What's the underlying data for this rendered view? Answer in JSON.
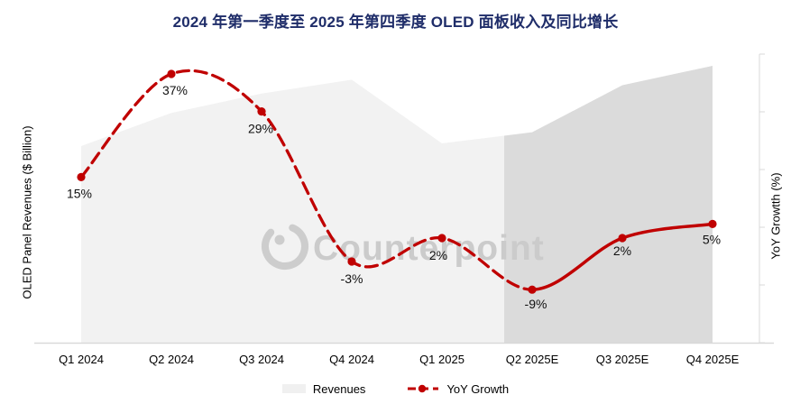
{
  "title": "2024 年第一季度至 2025 年第四季度 OLED 面板收入及同比增长",
  "axes": {
    "left_label": "OLED Panel Revenues ($ Billion)",
    "right_label": "YoY Growtth (%)"
  },
  "legend": {
    "revenues_label": "Revenues",
    "yoy_label": "YoY Growth"
  },
  "watermark": {
    "text": "Counterpoint"
  },
  "colors": {
    "title": "#1f2d69",
    "line": "#C00000",
    "area_actual": "#F2F2F2",
    "area_forecast": "#DBDBDB",
    "axis": "#D9D9D9",
    "watermark": "#CDCDCD",
    "value_label": "#111111"
  },
  "chart_data": {
    "type": "combo",
    "categories": [
      "Q1 2024",
      "Q2 2024",
      "Q3 2024",
      "Q4 2024",
      "Q1 2025",
      "Q2 2025E",
      "Q3 2025E",
      "Q4 2025E"
    ],
    "series": [
      {
        "name": "Revenues",
        "type": "area",
        "axis": "left",
        "values": [
          71,
          83,
          90,
          95,
          72,
          76,
          93,
          100
        ],
        "value_note": "relative scale, y-axis unlabeled",
        "forecast_start_index": 5
      },
      {
        "name": "YoY Growth",
        "type": "line",
        "axis": "right",
        "unit": "%",
        "values": [
          15,
          37,
          29,
          -3,
          2,
          -9,
          2,
          5
        ],
        "point_labels": [
          "15%",
          "37%",
          "29%",
          "-3%",
          "2%",
          "-9%",
          "2%",
          "5%"
        ],
        "solid_from_index": 5,
        "style": "dashed for actuals, solid for estimates"
      }
    ],
    "legend_position": "bottom",
    "grid": false
  }
}
